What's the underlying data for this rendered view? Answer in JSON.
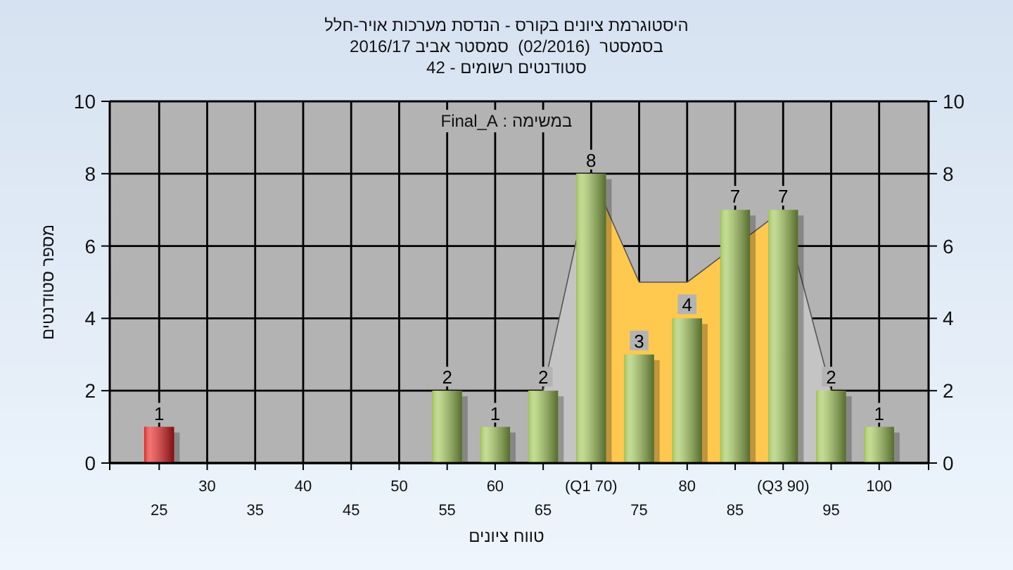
{
  "chart_data": {
    "type": "bar",
    "title": "היסטוגרמת ציונים בקורס - הנדסת מערכות אויר-חלל",
    "subtitle": "בסמסטר  (02/2016)  סמסטר אביב 2016/17\nסטודנטים רשומים - 42",
    "xlabel": "טווח ציונים",
    "ylabel": "מספר סטודנטים",
    "annotations": [
      "במשימה : Final_A"
    ],
    "categories": [
      "25",
      "30",
      "35",
      "40",
      "45",
      "50",
      "55",
      "60",
      "65",
      "(Q1 70)",
      "75",
      "80",
      "85",
      "(Q3 90)",
      "95",
      "100"
    ],
    "series": [
      {
        "type": "area",
        "color": "#c4c4c4",
        "values": [
          null,
          null,
          null,
          null,
          null,
          null,
          null,
          null,
          2,
          8,
          null,
          null,
          null,
          7,
          2,
          null
        ]
      },
      {
        "type": "area",
        "color": "#ffc94f",
        "x": [
          "(Q1 70)",
          "75",
          "80",
          "(Q3 90)"
        ],
        "values": [
          8,
          5,
          5,
          7
        ]
      },
      {
        "colors": [
          "#e41c1c",
          "#9cc252",
          "#9cc252",
          "#9cc252",
          "#9cc252",
          "#9cc252",
          "#9cc252",
          "#9cc252",
          "#9cc252",
          "#9cc252",
          "#9cc252",
          "#9cc252",
          "#9cc252",
          "#9cc252",
          "#9cc252",
          "#9cc252"
        ],
        "values": [
          1,
          0,
          0,
          0,
          0,
          0,
          2,
          1,
          2,
          8,
          3,
          4,
          7,
          7,
          2,
          1
        ],
        "value_labels": [
          "1",
          null,
          null,
          null,
          null,
          null,
          "2",
          "1",
          "2",
          "8",
          "3",
          "4",
          "7",
          "7",
          "2",
          "1"
        ]
      }
    ],
    "ylim": [
      0,
      10
    ],
    "yticks": [
      0,
      2,
      4,
      6,
      8,
      10
    ],
    "y2lim": [
      0,
      10
    ],
    "y2ticks": [
      0,
      2,
      4,
      6,
      8,
      10
    ],
    "grid": true
  }
}
